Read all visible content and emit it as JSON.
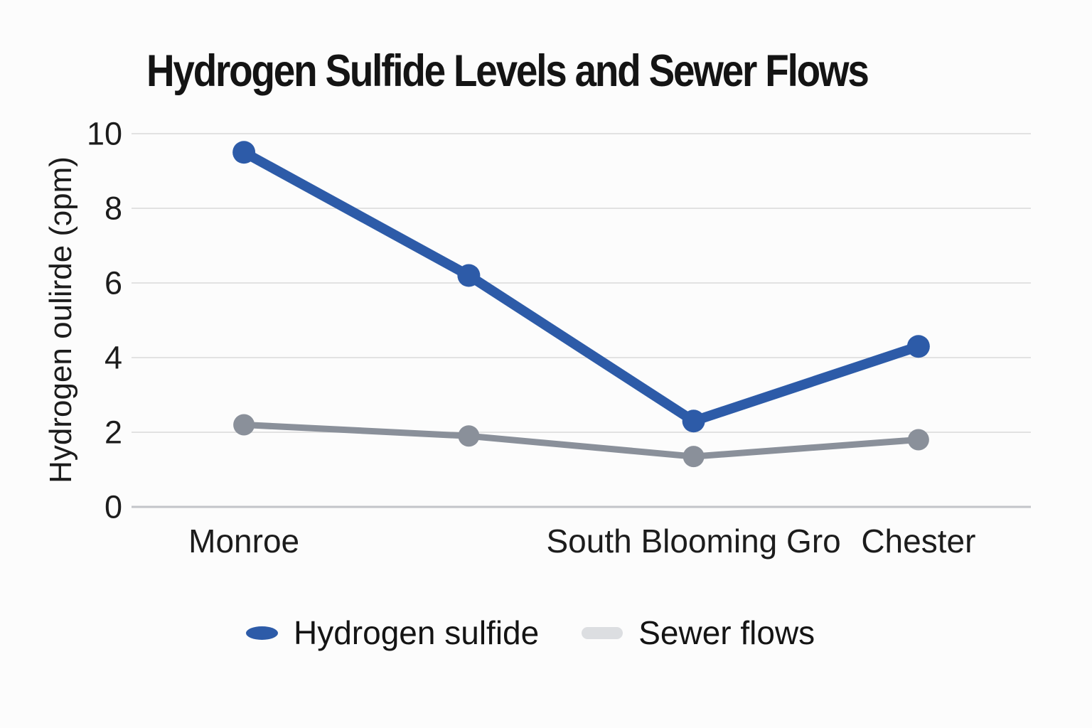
{
  "title": "Hydrogen Sulfide Levels and Sewer Flows",
  "chart_data": {
    "type": "line",
    "title": "Hydrogen Sulfide Levels and Sewer Flows",
    "categories": [
      "Monroe",
      "",
      "South Blooming Gro",
      "Chester"
    ],
    "series": [
      {
        "name": "Hydrogen sulfide",
        "values": [
          9.5,
          6.2,
          2.3,
          4.3
        ],
        "color": "#2d5ba8",
        "line_width": 14,
        "marker_radius": 16,
        "legend_marker": "ellipse",
        "legend_color": "#2d5ba8"
      },
      {
        "name": "Sewer flows",
        "values": [
          2.2,
          1.9,
          1.35,
          1.8
        ],
        "color": "#8a909a",
        "line_width": 9,
        "marker_radius": 15,
        "legend_marker": "pill",
        "legend_color": "#dcdee1"
      }
    ],
    "xlabel": "",
    "ylabel": "Hydrogen oulirde (ɔpm)",
    "yticks": [
      0,
      2,
      4,
      6,
      8,
      10
    ],
    "ylim": [
      0,
      10
    ],
    "grid": true,
    "gridline_color": "#d9d9d9",
    "baseline_color": "#c3c5c9",
    "legend_position": "bottom"
  }
}
